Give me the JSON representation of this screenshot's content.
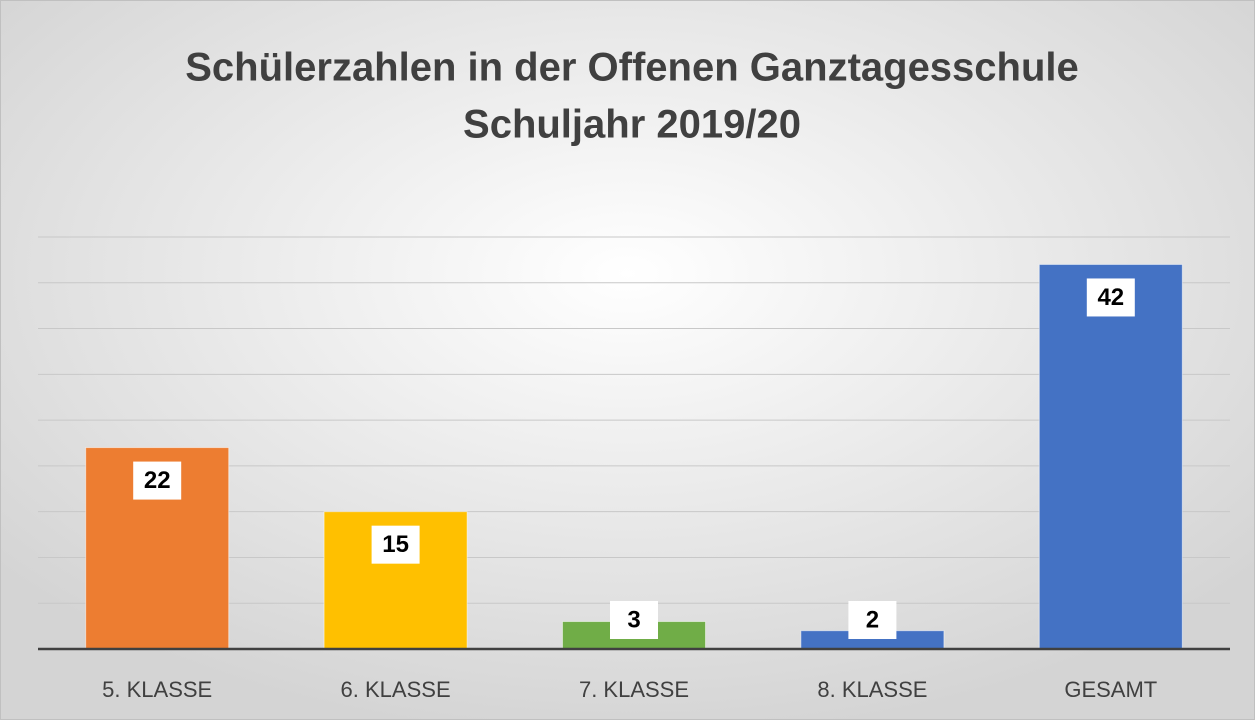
{
  "chart_data": {
    "type": "bar",
    "title": [
      "Schülerzahlen in der Offenen Ganztagesschule",
      "Schuljahr 2019/20"
    ],
    "categories": [
      "5. KLASSE",
      "6. KLASSE",
      "7. KLASSE",
      "8. KLASSE",
      "GESAMT"
    ],
    "values": [
      22,
      15,
      3,
      2,
      42
    ],
    "colors": [
      "#ed7d31",
      "#ffc000",
      "#70ad47",
      "#4472c4",
      "#4472c4"
    ],
    "ylim": [
      0,
      45
    ],
    "yticks": [
      0,
      5,
      10,
      15,
      20,
      25,
      30,
      35,
      40,
      45
    ],
    "grid": true
  }
}
